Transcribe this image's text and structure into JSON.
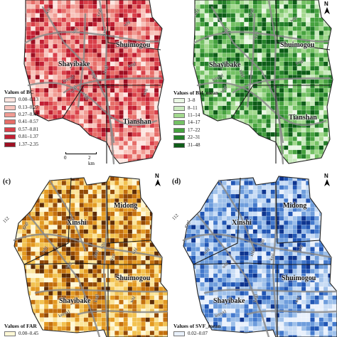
{
  "panels": [
    {
      "key": "a",
      "label": "",
      "palette": [
        "#fde6e1",
        "#f8c4bc",
        "#f19b93",
        "#e66d68",
        "#d9404a",
        "#c21f33",
        "#9e0f22"
      ],
      "weights": [
        0.08,
        0.14,
        0.2,
        0.22,
        0.18,
        0.12,
        0.06
      ],
      "districts": [
        "Shuimogou",
        "Shayibake",
        "Tianshan"
      ],
      "roads": [
        "whl",
        "whl",
        "whl",
        "kxtl",
        "kxgl",
        "kxgl",
        "kmyxl",
        "kxgl",
        "xjhl",
        "whl",
        "bsgl",
        "xhbl"
      ],
      "legend": {
        "title": "Values of BC",
        "items": [
          "0.00–0.13",
          "0.13–0.27",
          "0.27–0.41",
          "0.41–0.57",
          "0.57–0.81",
          "0.81–1.37",
          "1.37–2.35"
        ],
        "colors": [
          "#fde6e1",
          "#f8c4bc",
          "#f19b93",
          "#e66d68",
          "#d9404a",
          "#c21f33",
          "#9e0f22"
        ]
      },
      "scale": {
        "zero": "0",
        "dist": "2 km"
      },
      "north": "N"
    },
    {
      "key": "b",
      "label": "",
      "palette": [
        "#eaf7e4",
        "#c9eabd",
        "#a3d98e",
        "#74c164",
        "#46a23f",
        "#237f28",
        "#0d5c17"
      ],
      "weights": [
        0.07,
        0.12,
        0.16,
        0.2,
        0.22,
        0.15,
        0.08
      ],
      "districts": [
        "Shuimogou",
        "Shayibake",
        "Tianshan"
      ],
      "roads": [
        "whl",
        "whl",
        "whl",
        "kxtl",
        "kxgl",
        "kxgl",
        "kmyxl",
        "xhbl",
        "bsgl"
      ],
      "legend": {
        "title": "Values of BH_mean",
        "items": [
          "3–8",
          "8–11",
          "11–14",
          "14–17",
          "17–22",
          "22–31",
          "31–48"
        ],
        "colors": [
          "#eaf7e4",
          "#c9eabd",
          "#a3d98e",
          "#74c164",
          "#46a23f",
          "#237f28",
          "#0d5c17"
        ]
      },
      "scale": {
        "zero": "",
        "dist": ""
      },
      "north": "N"
    },
    {
      "key": "c",
      "label": "(c)",
      "palette": [
        "#fff8d6",
        "#fbe49a",
        "#f2c251",
        "#e39a22",
        "#c4700e",
        "#934a07",
        "#5e2c05"
      ],
      "weights": [
        0.1,
        0.16,
        0.2,
        0.2,
        0.16,
        0.11,
        0.07
      ],
      "districts": [
        "Midong",
        "Xinshi",
        "Shuimogou",
        "Shayibake"
      ],
      "roads": [
        "gzgl",
        "112",
        "whl",
        "whl",
        "whl",
        "xjhl",
        "kxtl",
        "xhbl",
        "kmyxl",
        "whl",
        "kxgl"
      ],
      "legend": {
        "title": "Values of FAR",
        "items": [
          "0.00–0.45"
        ],
        "colors": [
          "#fff8d6"
        ]
      },
      "scale": {
        "zero": "",
        "dist": ""
      },
      "north": "N"
    },
    {
      "key": "d",
      "label": "(d)",
      "palette": [
        "#e9f1fc",
        "#c8dcf5",
        "#9ec0ea",
        "#6e9ddc",
        "#4379cc",
        "#2156b4",
        "#0e3590"
      ],
      "weights": [
        0.14,
        0.18,
        0.2,
        0.18,
        0.14,
        0.1,
        0.06
      ],
      "districts": [
        "Midong",
        "Xinshi",
        "Shuimogou",
        "Shayibake"
      ],
      "roads": [
        "gzgl",
        "112",
        "whl",
        "whl",
        "whl",
        "xjhl",
        "xhbl",
        "kxtl",
        "kmyxl",
        "whl",
        "kxgl"
      ],
      "legend": {
        "title": "Values of SVF_mean",
        "items": [
          "0.02–0.07"
        ],
        "colors": [
          "#e9f1fc"
        ]
      },
      "scale": {
        "zero": "",
        "dist": ""
      },
      "north": "N"
    }
  ]
}
